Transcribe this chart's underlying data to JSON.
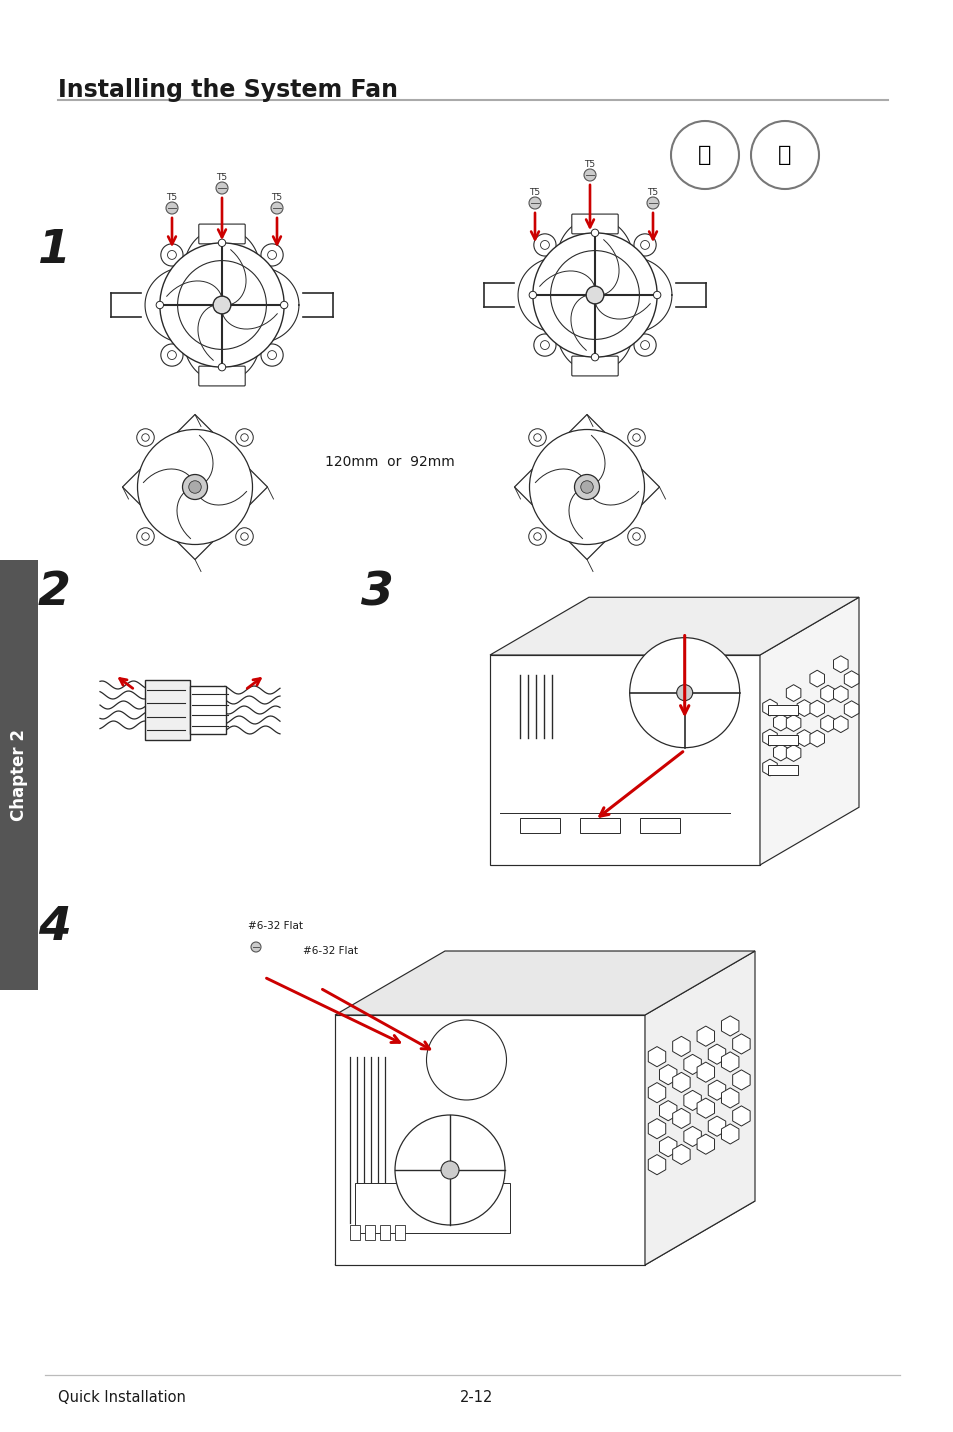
{
  "title": "Installing the System Fan",
  "footer_left": "Quick Installation",
  "footer_right": "2-12",
  "background_color": "#ffffff",
  "title_fontsize": 17,
  "footer_fontsize": 10.5,
  "chapter_label": "Chapter 2",
  "step1_label": "1",
  "step2_label": "2",
  "step3_label": "3",
  "step4_label": "4",
  "mid_label": "120mm  or  92mm",
  "screw_label1": "#6-32 Flat",
  "screw_label2": "#6-32 Flat",
  "red_color": "#cc0000",
  "dark_color": "#1a1a1a",
  "gray_color": "#888888",
  "light_gray": "#bbbbbb",
  "chapter_bg": "#555555",
  "chapter_text": "#ffffff",
  "line_color": "#2a2a2a"
}
